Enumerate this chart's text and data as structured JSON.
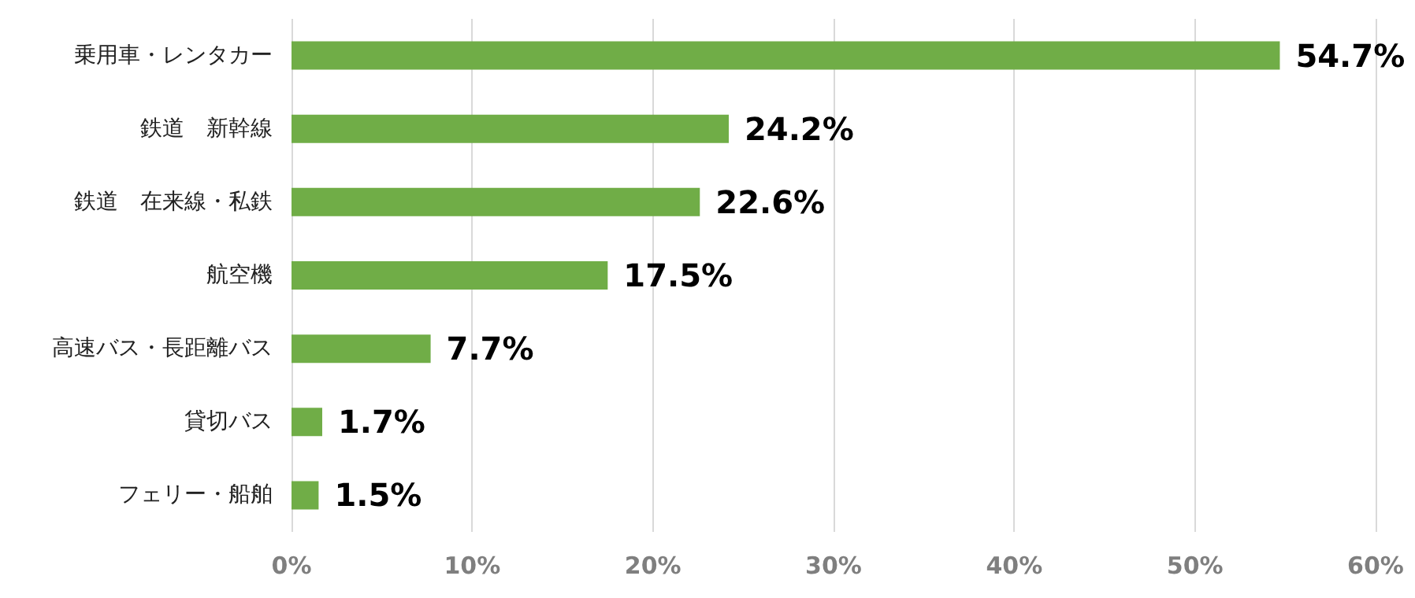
{
  "chart_data": {
    "type": "bar",
    "orientation": "horizontal",
    "categories": [
      "乗用車・レンタカー",
      "鉄道　新幹線",
      "鉄道　在来線・私鉄",
      "航空機",
      "高速バス・長距離バス",
      "貸切バス",
      "フェリー・船舶"
    ],
    "values": [
      54.7,
      24.2,
      22.6,
      17.5,
      7.7,
      1.7,
      1.5
    ],
    "value_labels": [
      "54.7%",
      "24.2%",
      "22.6%",
      "17.5%",
      "7.7%",
      "1.7%",
      "1.5%"
    ],
    "color": "#70ad47",
    "xlim": [
      0,
      60
    ],
    "xticks": [
      {
        "value": 0,
        "label": "0%"
      },
      {
        "value": 10,
        "label": "10%"
      },
      {
        "value": 20,
        "label": "20%"
      },
      {
        "value": 30,
        "label": "30%"
      },
      {
        "value": 40,
        "label": "40%"
      },
      {
        "value": 50,
        "label": "50%"
      },
      {
        "value": 60,
        "label": "60%"
      }
    ],
    "grid": "x"
  }
}
